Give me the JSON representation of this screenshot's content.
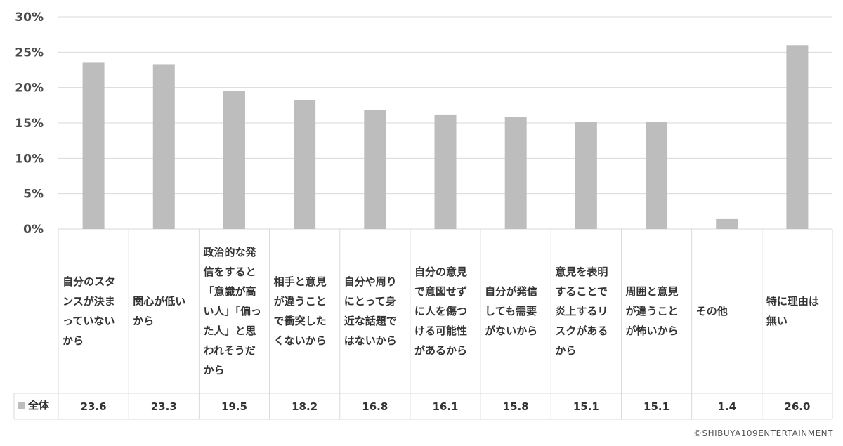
{
  "chart_data": {
    "type": "bar",
    "categories": [
      "自分のスタンスが決まっていないから",
      "関心が低いから",
      "政治的な発信をすると「意識が高い人」「偏った人」と思われそうだから",
      "相手と意見が違うことで衝突したくないから",
      "自分や周りにとって身近な話題ではないから",
      "自分の意見で意図せずに人を傷つける可能性があるから",
      "自分が発信しても需要がないから",
      "意見を表明することで炎上するリスクがあるから",
      "周囲と意見が違うことが怖いから",
      "その他",
      "特に理由は無い"
    ],
    "series": [
      {
        "name": "全体",
        "values": [
          23.6,
          23.3,
          19.5,
          18.2,
          16.8,
          16.1,
          15.8,
          15.1,
          15.1,
          1.4,
          26.0
        ]
      }
    ],
    "value_labels": [
      "23.6",
      "23.3",
      "19.5",
      "18.2",
      "16.8",
      "16.1",
      "15.8",
      "15.1",
      "15.1",
      "1.4",
      "26.0"
    ],
    "yticks": [
      "0%",
      "5%",
      "10%",
      "15%",
      "20%",
      "25%",
      "30%"
    ],
    "ylim": [
      0,
      30
    ],
    "grid": true,
    "legend_label": "全体",
    "bar_color": "#bdbdbd",
    "grid_color": "#d9d9d9"
  },
  "credit": "©SHIBUYA109ENTERTAINMENT"
}
